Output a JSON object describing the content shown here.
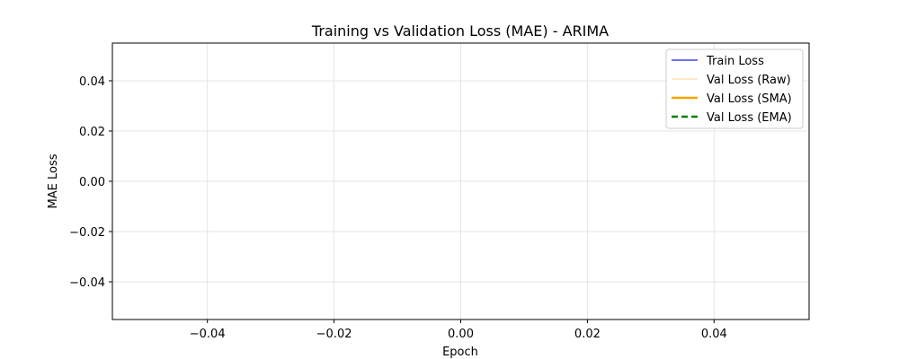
{
  "chart_data": {
    "type": "line",
    "title": "Training vs Validation Loss (MAE) - ARIMA",
    "xlabel": "Epoch",
    "ylabel": "MAE Loss",
    "xlim": [
      -0.055,
      0.055
    ],
    "ylim": [
      -0.055,
      0.055
    ],
    "xticks": [
      -0.04,
      -0.02,
      0.0,
      0.02,
      0.04
    ],
    "yticks": [
      -0.04,
      -0.02,
      0.0,
      0.02,
      0.04
    ],
    "xtick_labels": [
      "−0.04",
      "−0.02",
      "0.00",
      "0.02",
      "0.04"
    ],
    "ytick_labels": [
      "−0.04",
      "−0.02",
      "0.00",
      "0.02",
      "0.04"
    ],
    "grid": true,
    "legend_position": "top-right",
    "series": [
      {
        "name": "Train Loss",
        "color": "#4444ee",
        "style": "solid",
        "width": 1.5,
        "x": [],
        "y": []
      },
      {
        "name": "Val Loss (Raw)",
        "color": "#ffe0b2",
        "style": "solid",
        "width": 1.5,
        "x": [],
        "y": []
      },
      {
        "name": "Val Loss (SMA)",
        "color": "#f5a400",
        "style": "solid",
        "width": 2.5,
        "x": [],
        "y": []
      },
      {
        "name": "Val Loss (EMA)",
        "color": "#008000",
        "style": "dashed",
        "width": 2.5,
        "x": [],
        "y": []
      }
    ]
  }
}
